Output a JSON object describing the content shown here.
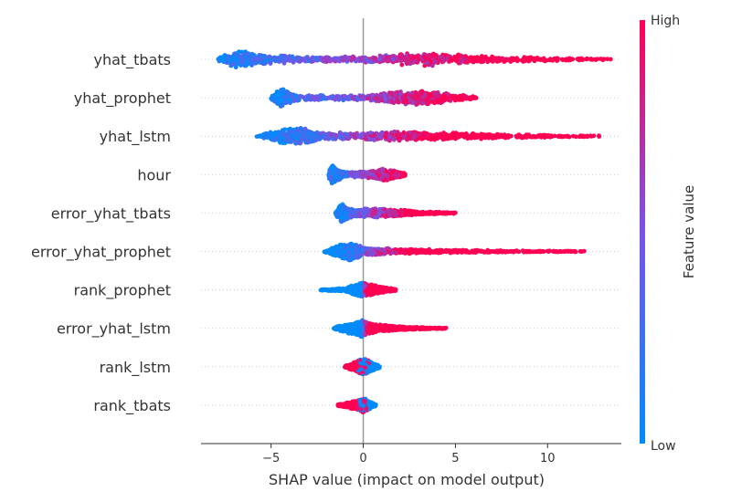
{
  "chart_data": {
    "type": "scatter",
    "subtype": "shap-beeswarm",
    "title": "",
    "xlabel": "SHAP value (impact on model output)",
    "ylabel": "",
    "xlim": [
      -8.8,
      14.0
    ],
    "x_ticks": [
      -5,
      0,
      5,
      10
    ],
    "x_tick_labels": [
      "−5",
      "0",
      "5",
      "10"
    ],
    "zero_line": 0,
    "grid": false,
    "colorbar": {
      "label": "Feature value",
      "high_label": "High",
      "low_label": "Low",
      "low_color": "#008bfb",
      "mid_color": "#7a53e6",
      "high_color": "#ff0052"
    },
    "features": [
      {
        "name": "yhat_tbats",
        "min": -7.9,
        "max": 13.5,
        "low_center": -6.8,
        "high_center": 3.5,
        "density": [
          [
            -7.9,
            1.5
          ],
          [
            -6.8,
            10
          ],
          [
            -5.5,
            6
          ],
          [
            -3,
            3
          ],
          [
            0,
            3
          ],
          [
            3.5,
            8
          ],
          [
            6,
            4
          ],
          [
            10,
            2
          ],
          [
            13.5,
            0.8
          ]
        ]
      },
      {
        "name": "yhat_prophet",
        "min": -5.0,
        "max": 6.2,
        "low_center": -4.5,
        "high_center": 3.0,
        "density": [
          [
            -5,
            2
          ],
          [
            -4.5,
            10
          ],
          [
            -3.5,
            3
          ],
          [
            0,
            2.5
          ],
          [
            3,
            9
          ],
          [
            5,
            4
          ],
          [
            6.2,
            1
          ]
        ]
      },
      {
        "name": "yhat_lstm",
        "min": -5.8,
        "max": 12.8,
        "low_center": -3.9,
        "high_center": 2.0,
        "density": [
          [
            -5.8,
            0.8
          ],
          [
            -3.9,
            11
          ],
          [
            -2,
            4
          ],
          [
            0,
            4
          ],
          [
            2,
            5
          ],
          [
            5,
            3.5
          ],
          [
            9,
            2
          ],
          [
            12.8,
            0.7
          ]
        ]
      },
      {
        "name": "hour",
        "min": -1.9,
        "max": 2.3,
        "low_center": -1.7,
        "high_center": 1.2,
        "density": [
          [
            -1.9,
            2
          ],
          [
            -1.7,
            10
          ],
          [
            -1,
            3
          ],
          [
            0,
            3
          ],
          [
            1.2,
            7
          ],
          [
            2.3,
            1.5
          ]
        ]
      },
      {
        "name": "error_yhat_tbats",
        "min": -1.5,
        "max": 5.0,
        "low_center": -1.2,
        "high_center": 1.5,
        "density": [
          [
            -1.5,
            2
          ],
          [
            -1.2,
            10
          ],
          [
            -0.5,
            4
          ],
          [
            0.5,
            5
          ],
          [
            1.5,
            4
          ],
          [
            3,
            2
          ],
          [
            5,
            0.6
          ]
        ]
      },
      {
        "name": "error_yhat_prophet",
        "min": -2.1,
        "max": 12.0,
        "low_center": -0.7,
        "high_center": 1.5,
        "density": [
          [
            -2.1,
            1
          ],
          [
            -0.7,
            11
          ],
          [
            0,
            5
          ],
          [
            1.5,
            3
          ],
          [
            4,
            2
          ],
          [
            8,
            1
          ],
          [
            12,
            0.5
          ]
        ]
      },
      {
        "name": "rank_prophet",
        "min": -2.3,
        "max": 1.8,
        "low_center": -0.1,
        "high_center": 0.1,
        "density": [
          [
            -2.3,
            0.6
          ],
          [
            -1,
            1.8
          ],
          [
            -0.1,
            8
          ],
          [
            0.3,
            6
          ],
          [
            1.8,
            0.8
          ]
        ]
      },
      {
        "name": "error_yhat_lstm",
        "min": -1.6,
        "max": 4.5,
        "low_center": -0.1,
        "high_center": 0.2,
        "density": [
          [
            -1.6,
            1
          ],
          [
            -0.1,
            10
          ],
          [
            0.5,
            5
          ],
          [
            2,
            2
          ],
          [
            4.5,
            0.6
          ]
        ]
      },
      {
        "name": "rank_lstm",
        "min": -1.0,
        "max": 0.9,
        "low_center": 0.0,
        "high_center": -0.2,
        "density": [
          [
            -1,
            0.8
          ],
          [
            0,
            9
          ],
          [
            0.9,
            1
          ]
        ]
      },
      {
        "name": "rank_tbats",
        "min": -1.4,
        "max": 0.7,
        "low_center": 0.0,
        "high_center": -0.3,
        "density": [
          [
            -1.4,
            0.8
          ],
          [
            -0.3,
            5
          ],
          [
            0,
            8
          ],
          [
            0.7,
            1
          ]
        ]
      }
    ]
  }
}
